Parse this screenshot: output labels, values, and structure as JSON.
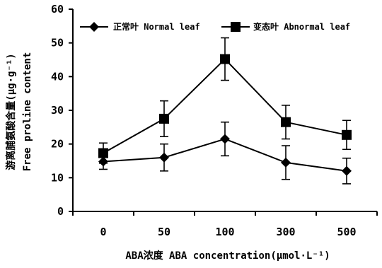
{
  "chart_data": {
    "type": "line",
    "title": "",
    "xlabel": "ABA浓度 ABA concentration(μmol·L⁻¹)",
    "ylabel_cn": "游离脯氨酸含量(μg·g⁻¹)",
    "ylabel_en": "Free proline content",
    "categories": [
      "0",
      "50",
      "100",
      "300",
      "500"
    ],
    "ylim": [
      0,
      60
    ],
    "yticks": [
      "0",
      "10",
      "20",
      "30",
      "40",
      "50",
      "60"
    ],
    "legend_position": "top",
    "grid": false,
    "series": [
      {
        "name": "正常叶 Normal leaf",
        "marker": "diamond",
        "values": [
          14.8,
          16.0,
          21.5,
          14.5,
          12.0
        ],
        "errors": [
          2.3,
          4.0,
          5.0,
          5.0,
          3.8
        ]
      },
      {
        "name": "变态叶 Abnormal leaf",
        "marker": "square",
        "values": [
          17.3,
          27.5,
          45.2,
          26.5,
          22.7
        ],
        "errors": [
          3.0,
          5.3,
          6.3,
          5.0,
          4.3
        ]
      }
    ]
  }
}
